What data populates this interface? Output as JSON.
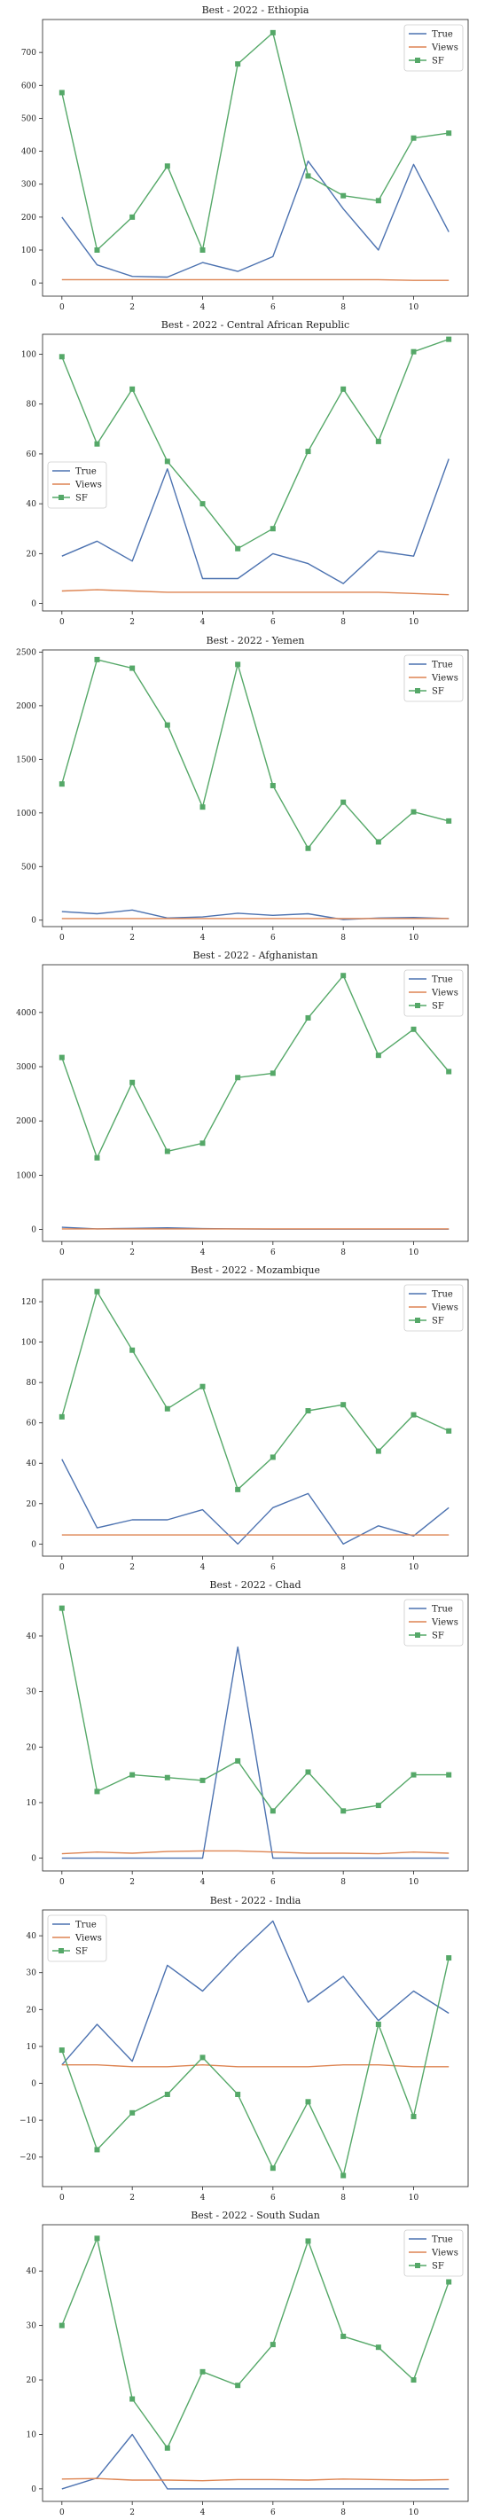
{
  "chart_data": [
    {
      "type": "line",
      "title": "Best - 2022 - Ethiopia",
      "x": [
        0,
        1,
        2,
        3,
        4,
        5,
        6,
        7,
        8,
        9,
        10,
        11
      ],
      "xticks": [
        0,
        2,
        4,
        6,
        8,
        10
      ],
      "ylim": [
        -40,
        800
      ],
      "yticks": [
        0,
        100,
        200,
        300,
        400,
        500,
        600,
        700
      ],
      "legend_position": "top-right",
      "series": [
        {
          "name": "True",
          "color": "#4c72b0",
          "marker": "none",
          "values": [
            200,
            55,
            20,
            18,
            62,
            35,
            80,
            370,
            225,
            100,
            360,
            155
          ]
        },
        {
          "name": "Views",
          "color": "#dd8452",
          "marker": "none",
          "values": [
            10,
            10,
            10,
            10,
            10,
            10,
            10,
            10,
            10,
            10,
            8,
            8
          ]
        },
        {
          "name": "SF",
          "color": "#55a868",
          "marker": "square",
          "values": [
            578,
            100,
            200,
            355,
            100,
            665,
            760,
            325,
            265,
            250,
            440,
            455
          ]
        }
      ]
    },
    {
      "type": "line",
      "title": "Best - 2022 - Central African Republic",
      "x": [
        0,
        1,
        2,
        3,
        4,
        5,
        6,
        7,
        8,
        9,
        10,
        11
      ],
      "xticks": [
        0,
        2,
        4,
        6,
        8,
        10
      ],
      "ylim": [
        -3,
        108
      ],
      "yticks": [
        0,
        20,
        40,
        60,
        80,
        100
      ],
      "legend_position": "center-left",
      "series": [
        {
          "name": "True",
          "color": "#4c72b0",
          "marker": "none",
          "values": [
            19,
            25,
            17,
            54,
            10,
            10,
            20,
            16,
            8,
            21,
            19,
            58
          ]
        },
        {
          "name": "Views",
          "color": "#dd8452",
          "marker": "none",
          "values": [
            5,
            5.5,
            5,
            4.5,
            4.5,
            4.5,
            4.5,
            4.5,
            4.5,
            4.5,
            4,
            3.5
          ]
        },
        {
          "name": "SF",
          "color": "#55a868",
          "marker": "square",
          "values": [
            99,
            64,
            86,
            57,
            40,
            22,
            30,
            61,
            86,
            65,
            101,
            106
          ]
        }
      ]
    },
    {
      "type": "line",
      "title": "Best - 2022 - Yemen",
      "x": [
        0,
        1,
        2,
        3,
        4,
        5,
        6,
        7,
        8,
        9,
        10,
        11
      ],
      "xticks": [
        0,
        2,
        4,
        6,
        8,
        10
      ],
      "ylim": [
        -60,
        2520
      ],
      "yticks": [
        0,
        500,
        1000,
        1500,
        2000,
        2500
      ],
      "legend_position": "top-right",
      "series": [
        {
          "name": "True",
          "color": "#4c72b0",
          "marker": "none",
          "values": [
            80,
            60,
            95,
            20,
            30,
            65,
            45,
            60,
            5,
            20,
            25,
            15
          ]
        },
        {
          "name": "Views",
          "color": "#dd8452",
          "marker": "none",
          "values": [
            15,
            15,
            15,
            15,
            15,
            15,
            15,
            15,
            15,
            15,
            15,
            15
          ]
        },
        {
          "name": "SF",
          "color": "#55a868",
          "marker": "square",
          "values": [
            1270,
            2430,
            2350,
            1820,
            1055,
            2385,
            1255,
            670,
            1100,
            730,
            1010,
            925
          ]
        }
      ]
    },
    {
      "type": "line",
      "title": "Best - 2022 - Afghanistan",
      "x": [
        0,
        1,
        2,
        3,
        4,
        5,
        6,
        7,
        8,
        9,
        10,
        11
      ],
      "xticks": [
        0,
        2,
        4,
        6,
        8,
        10
      ],
      "ylim": [
        -220,
        4880
      ],
      "yticks": [
        0,
        1000,
        2000,
        3000,
        4000
      ],
      "legend_position": "top-right",
      "series": [
        {
          "name": "True",
          "color": "#4c72b0",
          "marker": "none",
          "values": [
            40,
            10,
            20,
            30,
            15,
            10,
            5,
            5,
            5,
            5,
            5,
            5
          ]
        },
        {
          "name": "Views",
          "color": "#dd8452",
          "marker": "none",
          "values": [
            10,
            10,
            10,
            10,
            10,
            10,
            10,
            10,
            10,
            10,
            10,
            10
          ]
        },
        {
          "name": "SF",
          "color": "#55a868",
          "marker": "square",
          "values": [
            3170,
            1320,
            2710,
            1440,
            1590,
            2800,
            2880,
            3900,
            4680,
            3210,
            3690,
            2910
          ]
        }
      ]
    },
    {
      "type": "line",
      "title": "Best - 2022 - Mozambique",
      "x": [
        0,
        1,
        2,
        3,
        4,
        5,
        6,
        7,
        8,
        9,
        10,
        11
      ],
      "xticks": [
        0,
        2,
        4,
        6,
        8,
        10
      ],
      "ylim": [
        -6,
        131
      ],
      "yticks": [
        0,
        20,
        40,
        60,
        80,
        100,
        120
      ],
      "legend_position": "top-right",
      "series": [
        {
          "name": "True",
          "color": "#4c72b0",
          "marker": "none",
          "values": [
            42,
            8,
            12,
            12,
            17,
            0,
            18,
            25,
            0,
            9,
            4,
            18
          ]
        },
        {
          "name": "Views",
          "color": "#dd8452",
          "marker": "none",
          "values": [
            4.5,
            4.5,
            4.5,
            4.5,
            4.5,
            4.5,
            4.5,
            4.5,
            4.5,
            4.5,
            4.5,
            4.5
          ]
        },
        {
          "name": "SF",
          "color": "#55a868",
          "marker": "square",
          "values": [
            63,
            125,
            96,
            67,
            78,
            27,
            43,
            66,
            69,
            46,
            64,
            56
          ]
        }
      ]
    },
    {
      "type": "line",
      "title": "Best - 2022 - Chad",
      "x": [
        0,
        1,
        2,
        3,
        4,
        5,
        6,
        7,
        8,
        9,
        10,
        11
      ],
      "xticks": [
        0,
        2,
        4,
        6,
        8,
        10
      ],
      "ylim": [
        -2.3,
        47.5
      ],
      "yticks": [
        0,
        10,
        20,
        30,
        40
      ],
      "legend_position": "top-right",
      "series": [
        {
          "name": "True",
          "color": "#4c72b0",
          "marker": "none",
          "values": [
            0,
            0,
            0,
            0,
            0,
            38,
            0,
            0,
            0,
            0,
            0,
            0
          ]
        },
        {
          "name": "Views",
          "color": "#dd8452",
          "marker": "none",
          "values": [
            0.8,
            1.1,
            0.9,
            1.2,
            1.3,
            1.3,
            1.1,
            0.9,
            0.9,
            0.8,
            1.1,
            0.9
          ]
        },
        {
          "name": "SF",
          "color": "#55a868",
          "marker": "square",
          "values": [
            45,
            12,
            15,
            14.5,
            14,
            17.5,
            8.5,
            15.5,
            8.5,
            9.5,
            15,
            15
          ]
        }
      ]
    },
    {
      "type": "line",
      "title": "Best - 2022 - India",
      "x": [
        0,
        1,
        2,
        3,
        4,
        5,
        6,
        7,
        8,
        9,
        10,
        11
      ],
      "xticks": [
        0,
        2,
        4,
        6,
        8,
        10
      ],
      "ylim": [
        -28,
        47
      ],
      "yticks": [
        -20,
        -10,
        0,
        10,
        20,
        30,
        40
      ],
      "legend_position": "top-left",
      "series": [
        {
          "name": "True",
          "color": "#4c72b0",
          "marker": "none",
          "values": [
            5,
            16,
            6,
            32,
            25,
            35,
            44,
            22,
            29,
            17,
            25,
            19
          ]
        },
        {
          "name": "Views",
          "color": "#dd8452",
          "marker": "none",
          "values": [
            5,
            5,
            4.5,
            4.5,
            5,
            4.5,
            4.5,
            4.5,
            5,
            5,
            4.5,
            4.5
          ]
        },
        {
          "name": "SF",
          "color": "#55a868",
          "marker": "square",
          "values": [
            9,
            -18,
            -8,
            -3,
            7,
            -3,
            -23,
            -5,
            -25,
            16,
            -9,
            34
          ]
        }
      ]
    },
    {
      "type": "line",
      "title": "Best - 2022 - South Sudan",
      "x": [
        0,
        1,
        2,
        3,
        4,
        5,
        6,
        7,
        8,
        9,
        10,
        11
      ],
      "xticks": [
        0,
        2,
        4,
        6,
        8,
        10
      ],
      "ylim": [
        -2.3,
        48.5
      ],
      "yticks": [
        0,
        10,
        20,
        30,
        40
      ],
      "legend_position": "top-right",
      "series": [
        {
          "name": "True",
          "color": "#4c72b0",
          "marker": "none",
          "values": [
            0,
            2,
            10,
            0,
            0,
            0,
            0,
            0,
            0,
            0,
            0,
            0
          ]
        },
        {
          "name": "Views",
          "color": "#dd8452",
          "marker": "none",
          "values": [
            1.8,
            1.9,
            1.6,
            1.6,
            1.5,
            1.7,
            1.7,
            1.6,
            1.8,
            1.7,
            1.6,
            1.7
          ]
        },
        {
          "name": "SF",
          "color": "#55a868",
          "marker": "square",
          "values": [
            30,
            46,
            16.5,
            7.5,
            21.5,
            19,
            26.5,
            45.5,
            28,
            26,
            20,
            38
          ]
        }
      ]
    }
  ]
}
